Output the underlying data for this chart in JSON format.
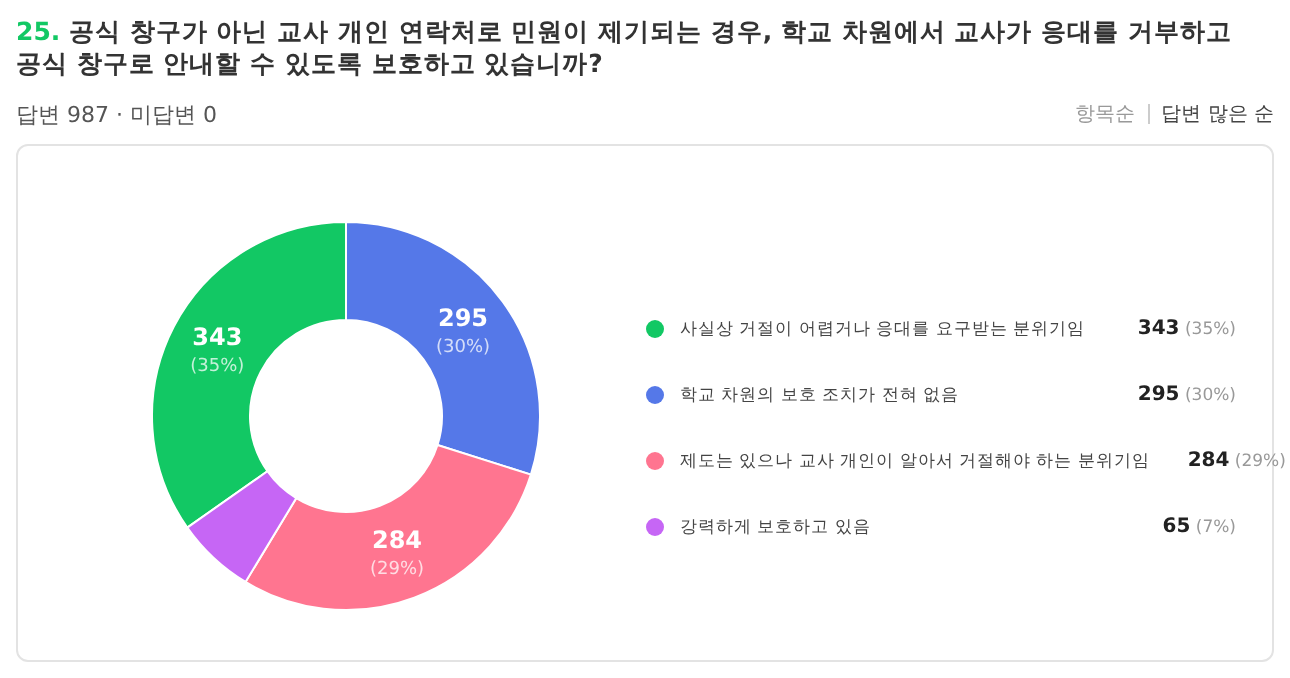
{
  "chart_data": {
    "type": "donut",
    "title": "25. 공식 창구가 아닌 교사 개인 연락처로 민원이 제기되는 경우, 학교 차원에서 교사가 응대를 거부하고 공식 창구로 안내할 수 있도록 보호하고 있습니까?",
    "subtitle": "답변 987 · 미답변 0",
    "annotations": [
      "항목순",
      "답변 많은 순"
    ],
    "categories": [
      "사실상 거절이 어렵거나 응대를 요구받는 분위기임",
      "학교 차원의 보호 조치가 전혀 없음",
      "제도는 있으나 교사 개인이 알아서 거절해야 하는 분위기임",
      "강력하게 보호하고 있음"
    ],
    "values": [
      343,
      295,
      284,
      65
    ],
    "colors": [
      "#12c864",
      "#5578e8",
      "#ff7590",
      "#c666f5"
    ],
    "value_labels": [
      "343 (35%)",
      "295 (30%)",
      "284 (29%)",
      "65 (7%)"
    ],
    "legend": "right"
  }
}
